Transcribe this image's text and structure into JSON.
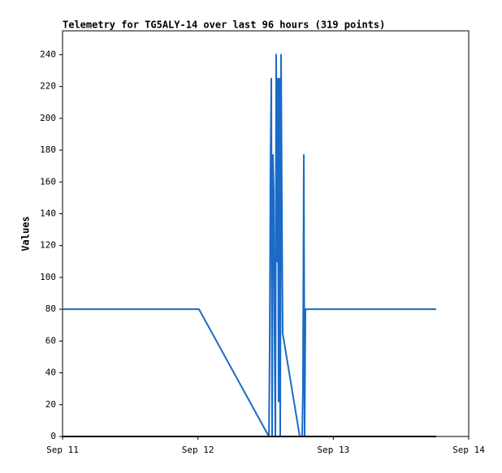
{
  "chart_data": {
    "type": "line",
    "title": "Telemetry for TG5ALY-14 over last 96 hours (319 points)",
    "y_label": "Values",
    "x": [
      0,
      24.19,
      36.58,
      36.72,
      36.86,
      37.01,
      37.15,
      37.3,
      37.44,
      37.58,
      37.73,
      37.87,
      38.02,
      38.16,
      38.3,
      38.45,
      38.59,
      38.74,
      38.88,
      39.02,
      42.05,
      42.48,
      42.62,
      42.77,
      42.91,
      43.06,
      66.24
    ],
    "series": [
      {
        "color": "#1a6ac8",
        "values": [
          80,
          80,
          0,
          57,
          168,
          225,
          0,
          177,
          155,
          65,
          0,
          240,
          110,
          225,
          22,
          225,
          0,
          240,
          145,
          65,
          0,
          0,
          32,
          177,
          0,
          80,
          80
        ]
      },
      {
        "color": "#000000",
        "values": [
          0,
          0,
          0,
          0,
          0,
          0,
          0,
          0,
          0,
          0,
          0,
          0,
          0,
          0,
          0,
          0,
          0,
          0,
          0,
          0,
          0,
          0,
          0,
          0,
          0,
          0,
          0
        ]
      }
    ],
    "xlim": [
      0,
      72
    ],
    "xticks": [
      {
        "value": 0,
        "label": "Sep 11"
      },
      {
        "value": 24,
        "label": "Sep 12"
      },
      {
        "value": 48,
        "label": "Sep 13"
      },
      {
        "value": 72,
        "label": "Sep 14"
      }
    ],
    "ylim": [
      0,
      255
    ],
    "yticks": [
      0,
      20,
      40,
      60,
      80,
      100,
      120,
      140,
      160,
      180,
      200,
      220,
      240
    ],
    "grid": false
  }
}
